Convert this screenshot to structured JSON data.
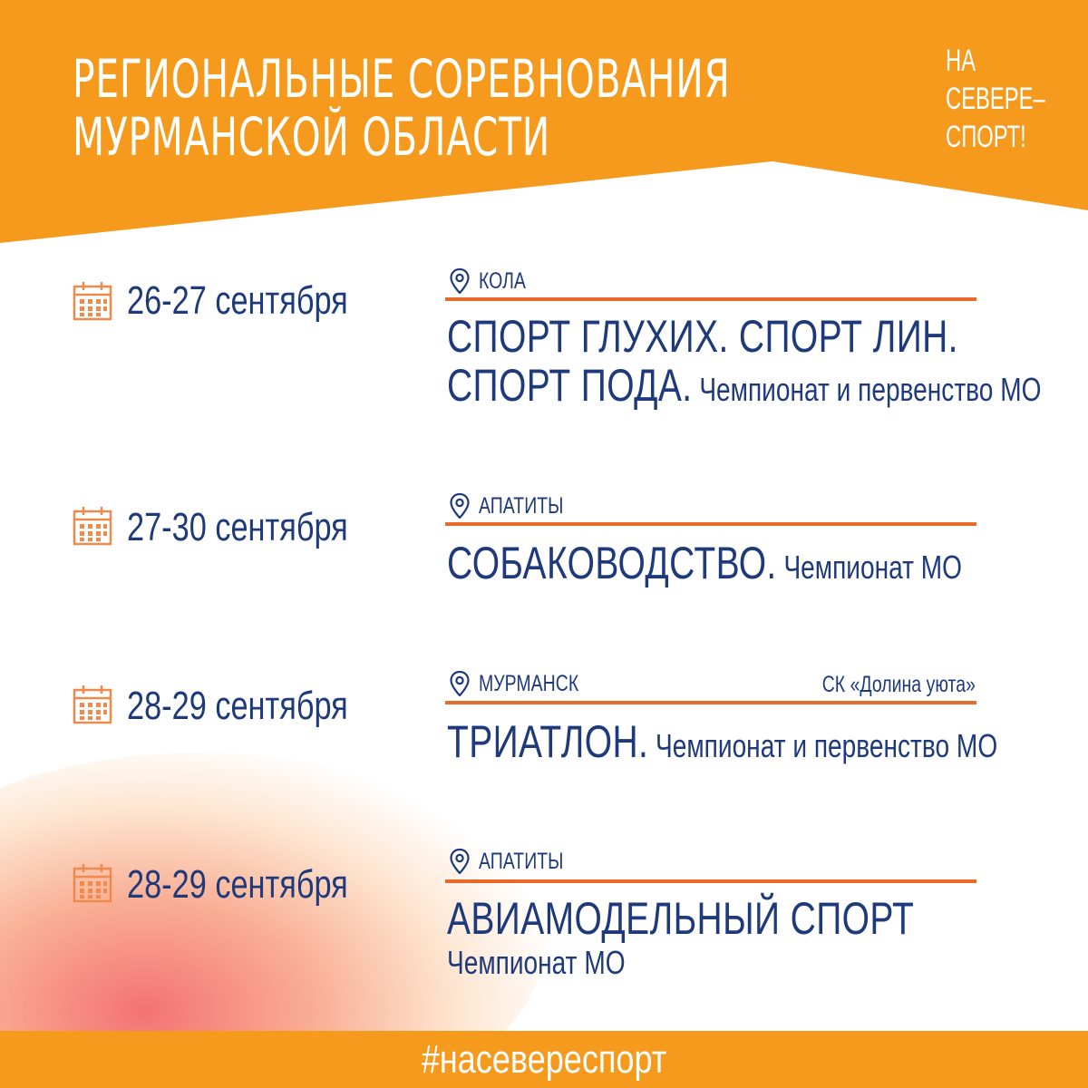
{
  "header": {
    "title_line1": "РЕГИОНАЛЬНЫЕ СОРЕВНОВАНИЯ",
    "title_line2": "МУРМАНСКОЙ ОБЛАСТИ",
    "logo_line1": "НА",
    "logo_line2": "СЕВЕРЕ–",
    "logo_line3": "СПОРТ!"
  },
  "events": [
    {
      "date": "26-27 сентября",
      "city": "КОЛА",
      "venue": "",
      "line1_big": "СПОРТ ГЛУХИХ. СПОРТ ЛИН.",
      "line2_big": "СПОРТ ПОДА.",
      "line2_small": " Чемпионат и первенство МО"
    },
    {
      "date": "27-30 сентября",
      "city": "АПАТИТЫ",
      "venue": "",
      "line1_big": "СОБАКОВОДСТВО.",
      "line1_small": " Чемпионат МО"
    },
    {
      "date": "28-29 сентября",
      "city": "МУРМАНСК",
      "venue": "СК «Долина уюта»",
      "line1_big": "ТРИАТЛОН.",
      "line1_small": " Чемпионат и первенство МО"
    },
    {
      "date": "28-29 сентября",
      "city": "АПАТИТЫ",
      "venue": "",
      "line1_big": "АВИАМОДЕЛЬНЫЙ СПОРТ",
      "line2_small": "Чемпионат МО"
    }
  ],
  "footer": {
    "hashtag": "#насевереспорт"
  },
  "colors": {
    "orange": "#f59a1c",
    "rule": "#e86a2a",
    "navy": "#1e3a7b",
    "calendar": "#ef8a4a"
  },
  "icons": {
    "date": "calendar-icon",
    "place": "map-pin-icon"
  }
}
